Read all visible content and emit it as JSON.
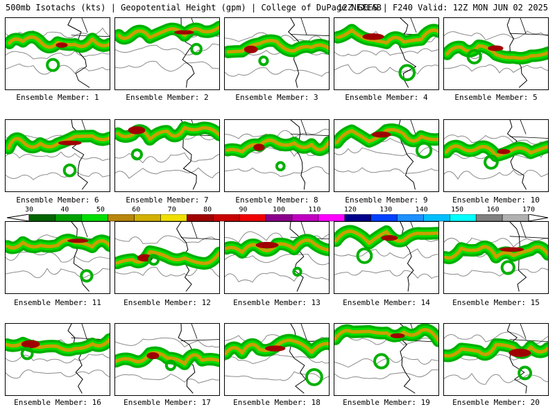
{
  "header": {
    "left": "500mb Isotachs (kts) | Geopotential Height (gpm) | College of DuPage NEXLAB",
    "right": "12Z GEFS | F240 Valid: 12Z MON JUN 02 2025"
  },
  "colorbar": {
    "labels": [
      "30",
      "40",
      "50",
      "60",
      "70",
      "80",
      "90",
      "100",
      "110",
      "120",
      "130",
      "140",
      "150",
      "160",
      "170"
    ],
    "colors": [
      "#006400",
      "#00a000",
      "#00dd00",
      "#b8860b",
      "#d2b000",
      "#f0e000",
      "#a00000",
      "#c80000",
      "#f00000",
      "#8b008b",
      "#c000c0",
      "#ff00ff",
      "#00008b",
      "#0040ff",
      "#1e90ff",
      "#00bfff",
      "#00ffff",
      "#808080",
      "#b0b0b0"
    ]
  },
  "members": [
    "Ensemble Member: 1",
    "Ensemble Member: 2",
    "Ensemble Member: 3",
    "Ensemble Member: 4",
    "Ensemble Member: 5",
    "Ensemble Member: 6",
    "Ensemble Member: 7",
    "Ensemble Member: 8",
    "Ensemble Member: 9",
    "Ensemble Member: 10",
    "Ensemble Member: 11",
    "Ensemble Member: 12",
    "Ensemble Member: 13",
    "Ensemble Member: 14",
    "Ensemble Member: 15",
    "Ensemble Member: 16",
    "Ensemble Member: 17",
    "Ensemble Member: 18",
    "Ensemble Member: 19",
    "Ensemble Member: 20"
  ]
}
